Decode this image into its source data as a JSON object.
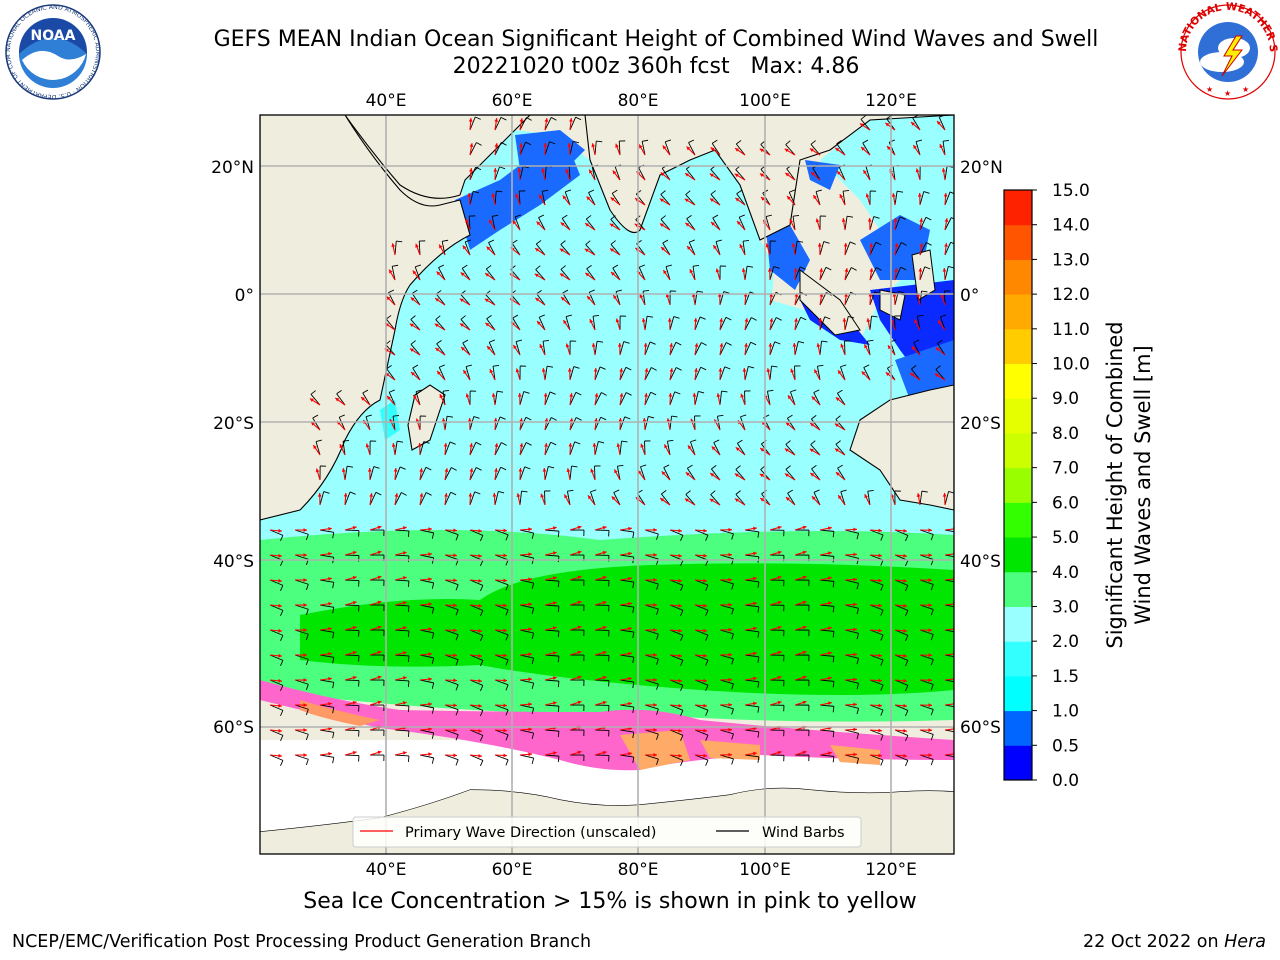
{
  "title": {
    "line1": "GEFS MEAN Indian Ocean Significant Height of Combined Wind Waves and Swell",
    "line2": "20221020 t00z 360h fcst   Max: 4.86"
  },
  "logos": {
    "left": "noaa-logo",
    "left_text": "NOAA",
    "left_ring_text": "NATIONAL OCEANIC AND ATMOSPHERIC ADMINISTRATION · U.S. DEPARTMENT OF COMMERCE",
    "right": "nws-logo",
    "right_ring_text": "NATIONAL WEATHER SERVICE"
  },
  "map": {
    "lon_range": [
      20,
      130
    ],
    "lat_range": [
      -74,
      28
    ],
    "lon_ticks": [
      "40°E",
      "60°E",
      "80°E",
      "100°E",
      "120°E"
    ],
    "lat_ticks_left": [
      "20°N",
      "0°",
      "20°S",
      "40°S",
      "60°S"
    ],
    "lat_ticks_right": [
      "20°N",
      "0°",
      "20°S",
      "40°S",
      "60°S"
    ],
    "grid": true,
    "legend": {
      "items": [
        "Primary Wave Direction (unscaled)",
        "Wind Barbs"
      ],
      "colors": [
        "#ff0000",
        "#000000"
      ],
      "placement": "bottom-center"
    }
  },
  "colorbar": {
    "label_line1": "Significant Height of Combined",
    "label_line2": "Wind Waves and Swell [m]",
    "ticks": [
      "0.0",
      "0.5",
      "1.0",
      "1.5",
      "2.0",
      "3.0",
      "4.0",
      "5.0",
      "6.0",
      "7.0",
      "8.0",
      "9.0",
      "10.0",
      "11.0",
      "12.0",
      "13.0",
      "14.0",
      "15.0"
    ],
    "colors": [
      "#0000ff",
      "#0066ff",
      "#00ffff",
      "#33ffff",
      "#99ffff",
      "#4cff7f",
      "#00e600",
      "#33ff00",
      "#99ff00",
      "#ccff00",
      "#e6ff00",
      "#ffff00",
      "#ffcc00",
      "#ffaa00",
      "#ff8800",
      "#ff5500",
      "#ff2200"
    ]
  },
  "chart_data": {
    "type": "heatmap",
    "title": "GEFS MEAN Indian Ocean Significant Height of Combined Wind Waves and Swell",
    "subtitle": "20221020 t00z 360h fcst   Max: 4.86",
    "ylabel": "Significant Height of Combined Wind Waves and Swell [m]",
    "max_value": 4.86,
    "units": "m",
    "color_levels": [
      0.0,
      0.5,
      1.0,
      1.5,
      2.0,
      3.0,
      4.0,
      5.0,
      6.0,
      7.0,
      8.0,
      9.0,
      10.0,
      11.0,
      12.0,
      13.0,
      14.0,
      15.0
    ]
  },
  "footer": {
    "caption": "Sea Ice Concentration > 15% is shown in pink to yellow",
    "left": "NCEP/EMC/Verification Post Processing Product Generation Branch",
    "right_prefix": "22 Oct 2022 on ",
    "right_host": "Hera"
  }
}
